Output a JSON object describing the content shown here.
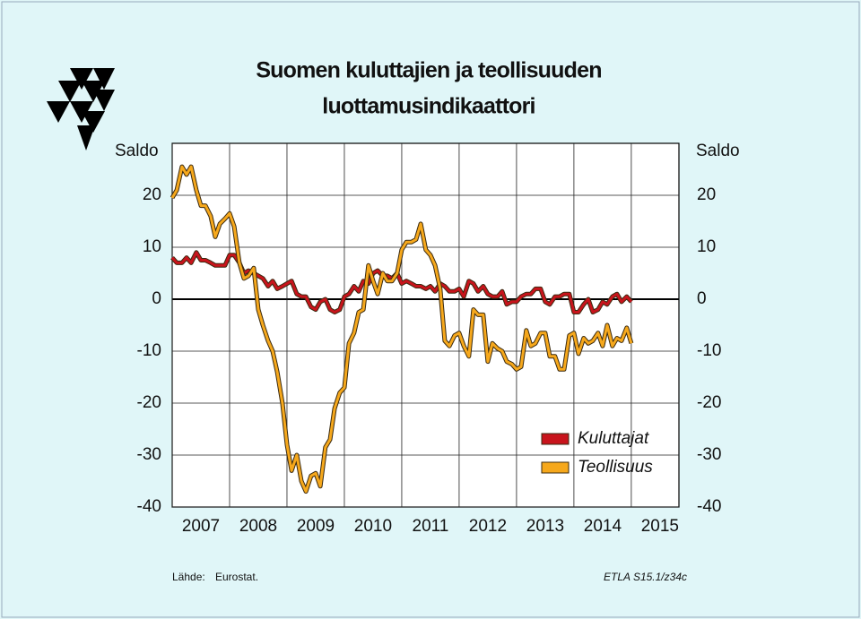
{
  "chart_data": {
    "type": "line",
    "title": [
      "Suomen kuluttajien ja teollisuuden",
      "luottamusindikaattori"
    ],
    "y_label": "Saldo",
    "xlim": [
      2007,
      2015.83
    ],
    "xticks": [
      2007,
      2008,
      2009,
      2010,
      2011,
      2012,
      2013,
      2014,
      2015
    ],
    "ylim": [
      -40,
      30
    ],
    "yticks": [
      -40,
      -30,
      -20,
      -10,
      0,
      10,
      20
    ],
    "grid": true,
    "legend": "lower right",
    "x": [
      2007.0,
      2007.08,
      2007.17,
      2007.25,
      2007.33,
      2007.42,
      2007.5,
      2007.58,
      2007.67,
      2007.75,
      2007.83,
      2007.92,
      2008.0,
      2008.08,
      2008.17,
      2008.25,
      2008.33,
      2008.42,
      2008.5,
      2008.58,
      2008.67,
      2008.75,
      2008.83,
      2008.92,
      2009.0,
      2009.08,
      2009.17,
      2009.25,
      2009.33,
      2009.42,
      2009.5,
      2009.58,
      2009.67,
      2009.75,
      2009.83,
      2009.92,
      2010.0,
      2010.08,
      2010.17,
      2010.25,
      2010.33,
      2010.42,
      2010.5,
      2010.58,
      2010.67,
      2010.75,
      2010.83,
      2010.92,
      2011.0,
      2011.08,
      2011.17,
      2011.25,
      2011.33,
      2011.42,
      2011.5,
      2011.58,
      2011.67,
      2011.75,
      2011.83,
      2011.92,
      2012.0,
      2012.08,
      2012.17,
      2012.25,
      2012.33,
      2012.42,
      2012.5,
      2012.58,
      2012.67,
      2012.75,
      2012.83,
      2012.92,
      2013.0,
      2013.08,
      2013.17,
      2013.25,
      2013.33,
      2013.42,
      2013.5,
      2013.58,
      2013.67,
      2013.75,
      2013.83,
      2013.92,
      2014.0,
      2014.08,
      2014.17,
      2014.25,
      2014.33,
      2014.42,
      2014.5,
      2014.58,
      2014.67,
      2014.75,
      2014.83,
      2014.92,
      2015.0
    ],
    "series": [
      {
        "name": "Kuluttajat",
        "color": "#c8141c",
        "values": [
          8,
          7,
          7,
          8,
          7,
          9,
          7.5,
          7.5,
          7,
          6.5,
          6.5,
          6.5,
          8.5,
          8.5,
          7,
          5,
          5.5,
          5,
          4.5,
          4,
          2.5,
          3.5,
          2,
          2.5,
          3,
          3.5,
          1,
          0.5,
          0.5,
          -1.5,
          -2,
          -0.5,
          0,
          -2,
          -2.5,
          -2,
          0.5,
          1,
          2.5,
          1.5,
          3.5,
          3,
          5,
          5.5,
          4.5,
          4.5,
          4,
          5,
          3,
          3.5,
          3,
          2.5,
          2.5,
          2,
          2.5,
          1.5,
          3,
          2.5,
          1.5,
          1.5,
          2,
          0.5,
          3.5,
          3,
          1.5,
          2.5,
          1,
          0.5,
          0.5,
          1.5,
          -1,
          -0.5,
          -0.5,
          0.5,
          1,
          1,
          2,
          2,
          -0.5,
          -1,
          0.5,
          0.5,
          1,
          1,
          -2.5,
          -2.5,
          -1,
          0,
          -2.5,
          -2,
          -0.5,
          -1,
          0.5,
          1,
          -0.5,
          0.5,
          -0.5
        ]
      },
      {
        "name": "Teollisuus",
        "color": "#f6a81c",
        "values": [
          19.5,
          21,
          25.5,
          24,
          25.5,
          21,
          18,
          18,
          16,
          12,
          14.5,
          15.5,
          16.5,
          14,
          7,
          4,
          4.5,
          6,
          -2,
          -5,
          -8,
          -10,
          -14,
          -20,
          -28,
          -33,
          -30,
          -35,
          -37,
          -34,
          -33.5,
          -36,
          -28.5,
          -27,
          -21,
          -18,
          -17,
          -8.5,
          -6.5,
          -2.5,
          -2,
          6.5,
          3.5,
          1,
          5,
          3.5,
          3.5,
          5,
          9.5,
          11,
          11,
          11.5,
          14.5,
          9.5,
          8.5,
          6.5,
          2,
          -8,
          -9,
          -7,
          -6.5,
          -9,
          -11,
          -2,
          -3,
          -3,
          -12,
          -8.5,
          -9.5,
          -10,
          -12,
          -12.5,
          -13.5,
          -13,
          -6,
          -9,
          -8.5,
          -6.5,
          -6.5,
          -11,
          -11,
          -13.5,
          -13.5,
          -7,
          -6.5,
          -10.5,
          -7.5,
          -8.5,
          -8,
          -6.5,
          -9,
          -5,
          -9,
          -7.5,
          -8,
          -5.5,
          -8.5
        ]
      }
    ],
    "source_label": "Lähde:",
    "source": "Eurostat.",
    "code": "ETLA S15.1/z34c"
  }
}
